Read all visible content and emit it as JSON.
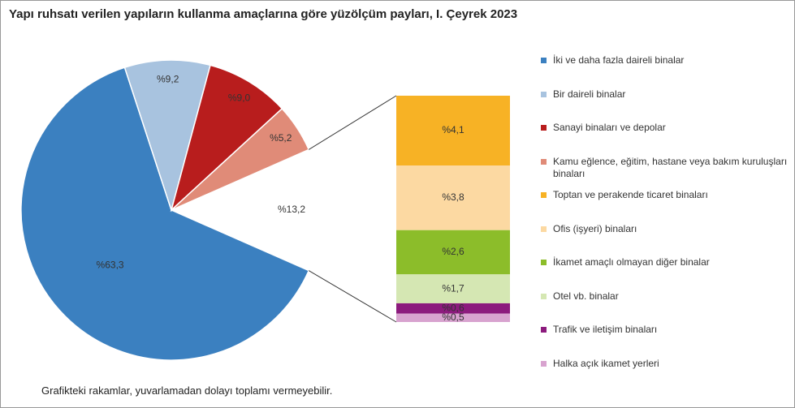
{
  "chart_data": {
    "type": "pie-of-bar",
    "title": "Yapı ruhsatı verilen yapıların kullanma amaçlarına göre yüzölçüm payları, I. Çeyrek 2023",
    "note": "Grafikteki rakamlar, yuvarlamadan dolayı toplamı vermeyebilir.",
    "pie": {
      "categories": [
        "İki ve daha fazla daireli binalar",
        "Bir daireli binalar",
        "Sanayi binaları ve depolar",
        "Kamu eğlence, eğitim, hastane veya bakım kuruluşları binaları",
        null
      ],
      "values": [
        63.3,
        9.2,
        9.0,
        5.2,
        13.2
      ],
      "value_labels": [
        "%63,3",
        "%9,2",
        "%9,0",
        "%5,2",
        "%13,2"
      ],
      "colors": [
        "#3b80c0",
        "#a8c3df",
        "#b81d1d",
        "#e08b78",
        null
      ]
    },
    "bar": {
      "categories": [
        "Toptan ve perakende ticaret binaları",
        "Ofis (işyeri) binaları",
        "İkamet amaçlı olmayan diğer binalar",
        "Otel vb. binalar",
        "Trafik ve iletişim binaları",
        "Halka açık ikamet yerleri"
      ],
      "values": [
        4.1,
        3.8,
        2.6,
        1.7,
        0.6,
        0.5
      ],
      "value_labels": [
        "%4,1",
        "%3,8",
        "%2,6",
        "%1,7",
        "%0,6",
        "%0,5"
      ],
      "colors": [
        "#f7b225",
        "#fcd9a2",
        "#8cbd2a",
        "#d5e7b3",
        "#8c1b7d",
        "#d8a3cf"
      ]
    }
  }
}
